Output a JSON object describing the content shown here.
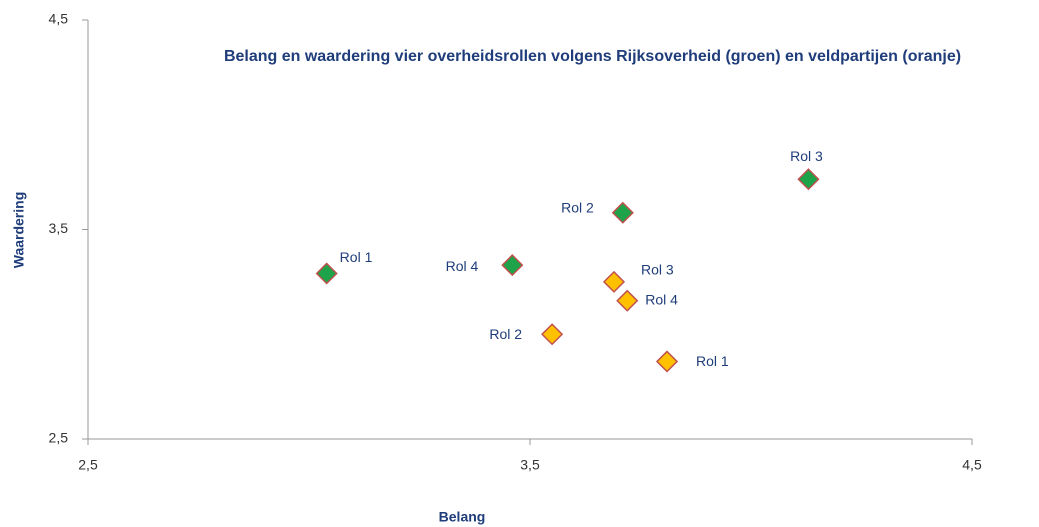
{
  "chart_data": {
    "type": "scatter",
    "title": "Belang en waardering vier overheidsrollen volgens Rijksoverheid (groen) en veldpartijen (oranje)",
    "xlabel": "Belang",
    "ylabel": "Waardering",
    "xlim": [
      2.5,
      4.5
    ],
    "ylim": [
      2.5,
      4.5
    ],
    "xticks": [
      {
        "value": 2.5,
        "label": "2,5"
      },
      {
        "value": 3.5,
        "label": "3,5"
      },
      {
        "value": 4.5,
        "label": "4,5"
      }
    ],
    "yticks": [
      {
        "value": 2.5,
        "label": "2,5"
      },
      {
        "value": 3.5,
        "label": "3,5"
      },
      {
        "value": 4.5,
        "label": "4,5"
      }
    ],
    "grid": false,
    "series": [
      {
        "color": "#1ea34a",
        "labels": [
          "Rol 1",
          "Rol 4",
          "Rol 2",
          "Rol 3"
        ],
        "x": [
          3.04,
          3.46,
          3.71,
          4.13
        ],
        "values": [
          3.29,
          3.33,
          3.58,
          3.74
        ]
      },
      {
        "color": "#ffc000",
        "labels": [
          "Rol 3",
          "Rol 4",
          "Rol 2",
          "Rol 1"
        ],
        "x": [
          3.69,
          3.72,
          3.55,
          3.81
        ],
        "values": [
          3.25,
          3.16,
          3.0,
          2.87
        ]
      }
    ]
  }
}
